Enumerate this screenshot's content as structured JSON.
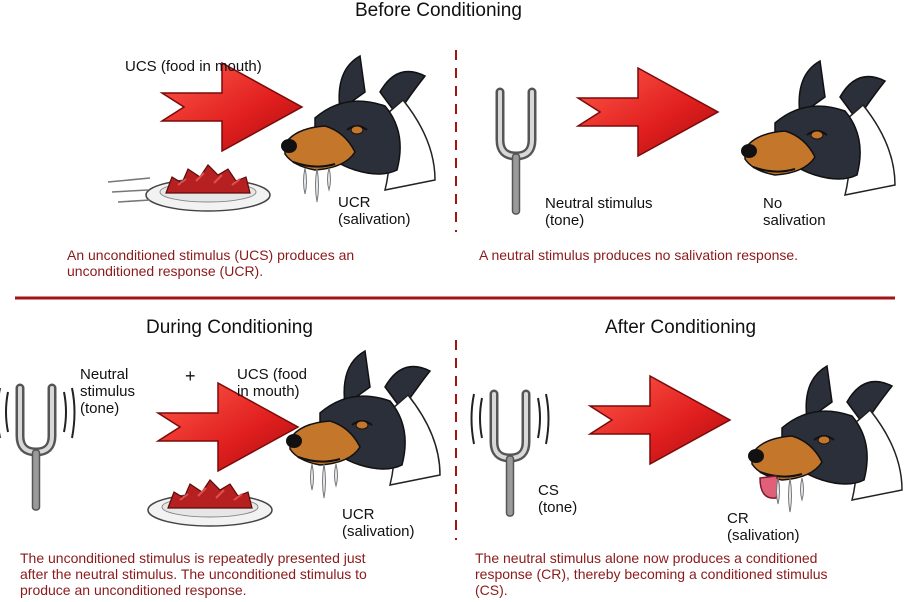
{
  "panels": {
    "before": {
      "title": "Before Conditioning",
      "ucs_label": "UCS (food in mouth)",
      "ucr_label": "UCR\n(salivation)",
      "neutral_label": "Neutral stimulus\n(tone)",
      "no_salivation_label": "No\nsalivation",
      "caption_left": "An unconditioned stimulus (UCS) produces an\nunconditioned response (UCR).",
      "caption_right": "A neutral stimulus produces no salivation response."
    },
    "during": {
      "title": "During Conditioning",
      "neutral_label": "Neutral\nstimulus\n(tone)",
      "plus": "+",
      "ucs_label": "UCS (food\nin mouth)",
      "ucr_label": "UCR\n(salivation)",
      "caption": "The unconditioned stimulus is repeatedly presented just\nafter the neutral stimulus. The unconditioned stimulus to\nproduce an unconditioned response."
    },
    "after": {
      "title": "After Conditioning",
      "cs_label": "CS\n(tone)",
      "cr_label": "CR\n(salivation)",
      "caption": "The neutral stimulus alone now produces a conditioned\nresponse (CR), thereby becoming a conditioned stimulus\n(CS)."
    }
  },
  "colors": {
    "caption": "#8b1a1a",
    "arrow": "#e01e1e",
    "divider": "#a31515"
  },
  "icons": [
    "tuning-fork-icon",
    "dog-head-icon",
    "food-plate-icon",
    "red-arrow-icon"
  ]
}
